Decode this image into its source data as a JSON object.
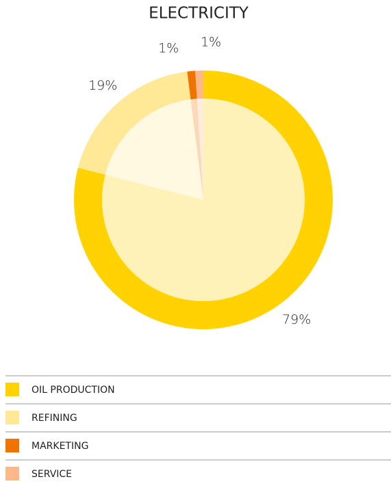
{
  "chart_data": {
    "type": "pie",
    "title": "ELECTRICITY",
    "categories": [
      "OIL PRODUCTION",
      "REFINING",
      "MARKETING",
      "SERVICE"
    ],
    "values": [
      79,
      19,
      1,
      1
    ],
    "value_labels": [
      "79%",
      "19%",
      "1%",
      "1%"
    ],
    "colors": [
      "#ffd200",
      "#ffe896",
      "#f07300",
      "#fbb98a"
    ]
  }
}
